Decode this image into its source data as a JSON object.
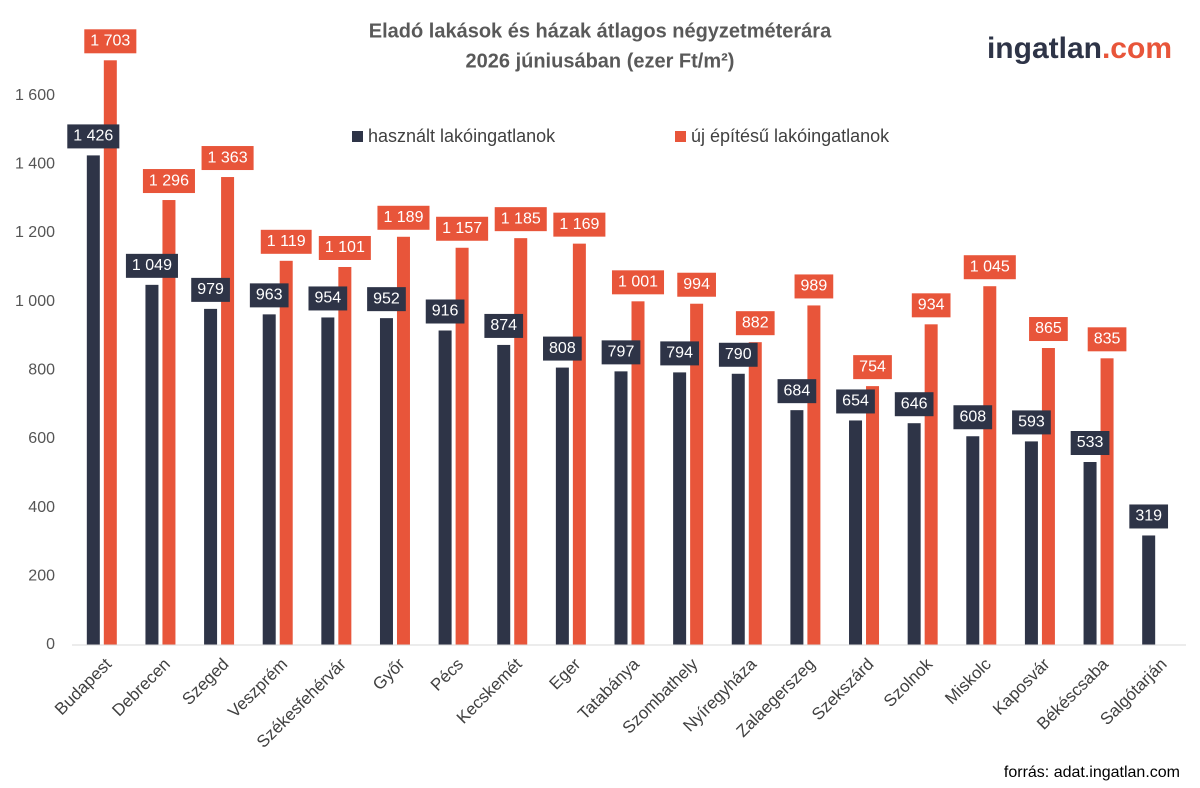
{
  "chart_data": {
    "type": "bar",
    "title": "Eladó  lakások és házak átlagos négyzetméterára",
    "subtitle": "2026 júniusában (ezer Ft/m²)",
    "logo": [
      "ingatlan",
      ".com"
    ],
    "source": "forrás: adat.ingatlan.com",
    "categories": [
      "Budapest",
      "Debrecen",
      "Szeged",
      "Veszprém",
      "Székesfehérvár",
      "Győr",
      "Pécs",
      "Kecskemét",
      "Eger",
      "Tatabánya",
      "Szombathely",
      "Nyíregyháza",
      "Zalaegerszeg",
      "Szekszárd",
      "Szolnok",
      "Miskolc",
      "Kaposvár",
      "Békéscsaba",
      "Salgótarján"
    ],
    "series": [
      {
        "name": "használt lakóingatlanok",
        "color": "#2e3447",
        "values": [
          1426,
          1049,
          979,
          963,
          954,
          952,
          916,
          874,
          808,
          797,
          794,
          790,
          684,
          654,
          646,
          608,
          593,
          533,
          319
        ],
        "value_labels": [
          "1 426",
          "1 049",
          "979",
          "963",
          "954",
          "952",
          "916",
          "874",
          "808",
          "797",
          "794",
          "790",
          "684",
          "654",
          "646",
          "608",
          "593",
          "533",
          "319"
        ]
      },
      {
        "name": "új építésű lakóingatlanok",
        "color": "#e8553a",
        "values": [
          1703,
          1296,
          1363,
          1119,
          1101,
          1189,
          1157,
          1185,
          1169,
          1001,
          994,
          882,
          989,
          754,
          934,
          1045,
          865,
          835,
          null
        ],
        "value_labels": [
          "1 703",
          "1 296",
          "1 363",
          "1 119",
          "1 101",
          "1 189",
          "1 157",
          "1 185",
          "1 169",
          "1 001",
          "994",
          "882",
          "989",
          "754",
          "934",
          "1 045",
          "865",
          "835",
          null
        ]
      }
    ],
    "ylim": [
      0,
      1800
    ],
    "yticks": [
      0,
      200,
      400,
      600,
      800,
      {
        "value": 1000,
        "label": "1 000"
      },
      {
        "value": 1200,
        "label": "1 200"
      },
      {
        "value": 1400,
        "label": "1 400"
      },
      {
        "value": 1600,
        "label": "1 600"
      }
    ],
    "grid": false
  }
}
